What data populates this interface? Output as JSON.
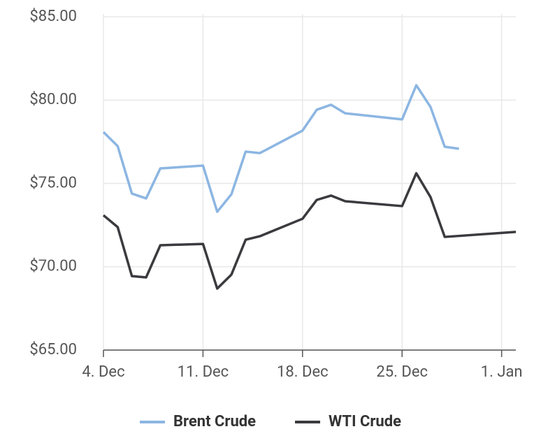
{
  "chart_data": {
    "type": "line",
    "series": [
      {
        "name": "Brent Crude",
        "color": "#8cb6e2",
        "x": [
          "4. Dec",
          "5. Dec",
          "6. Dec",
          "7. Dec",
          "8. Dec",
          "11. Dec",
          "12. Dec",
          "13. Dec",
          "14. Dec",
          "15. Dec",
          "18. Dec",
          "19. Dec",
          "20. Dec",
          "21. Dec",
          "25. Dec",
          "26. Dec",
          "27. Dec",
          "28. Dec",
          "29. Dec"
        ],
        "values": [
          78.08,
          77.24,
          74.39,
          74.1,
          75.9,
          76.07,
          73.3,
          74.35,
          76.91,
          76.82,
          78.17,
          79.42,
          79.72,
          79.21,
          78.84,
          80.89,
          79.59,
          77.2,
          77.08
        ]
      },
      {
        "name": "WTI Crude",
        "color": "#3a3a3f",
        "x": [
          "4. Dec",
          "5. Dec",
          "6. Dec",
          "7. Dec",
          "8. Dec",
          "11. Dec",
          "12. Dec",
          "13. Dec",
          "14. Dec",
          "15. Dec",
          "18. Dec",
          "19. Dec",
          "20. Dec",
          "21. Dec",
          "25. Dec",
          "26. Dec",
          "27. Dec",
          "28. Dec",
          "2. Jan"
        ],
        "values": [
          73.09,
          72.38,
          69.44,
          69.36,
          71.29,
          71.37,
          68.69,
          69.53,
          71.62,
          71.83,
          72.88,
          74.01,
          74.27,
          73.93,
          73.64,
          75.61,
          74.18,
          71.79,
          72.09
        ]
      }
    ],
    "xlim": [
      "4. Dec",
      "2. Jan"
    ],
    "xticks": [
      "4. Dec",
      "11. Dec",
      "18. Dec",
      "25. Dec",
      "1. Jan"
    ],
    "ylim": [
      65,
      85
    ],
    "yticks": [
      {
        "value": 65,
        "label": "$65.00"
      },
      {
        "value": 70,
        "label": "$70.00"
      },
      {
        "value": 75,
        "label": "$75.00"
      },
      {
        "value": 80,
        "label": "$80.00"
      },
      {
        "value": 85,
        "label": "$85.00"
      }
    ],
    "grid": true,
    "legend": "bottom"
  }
}
